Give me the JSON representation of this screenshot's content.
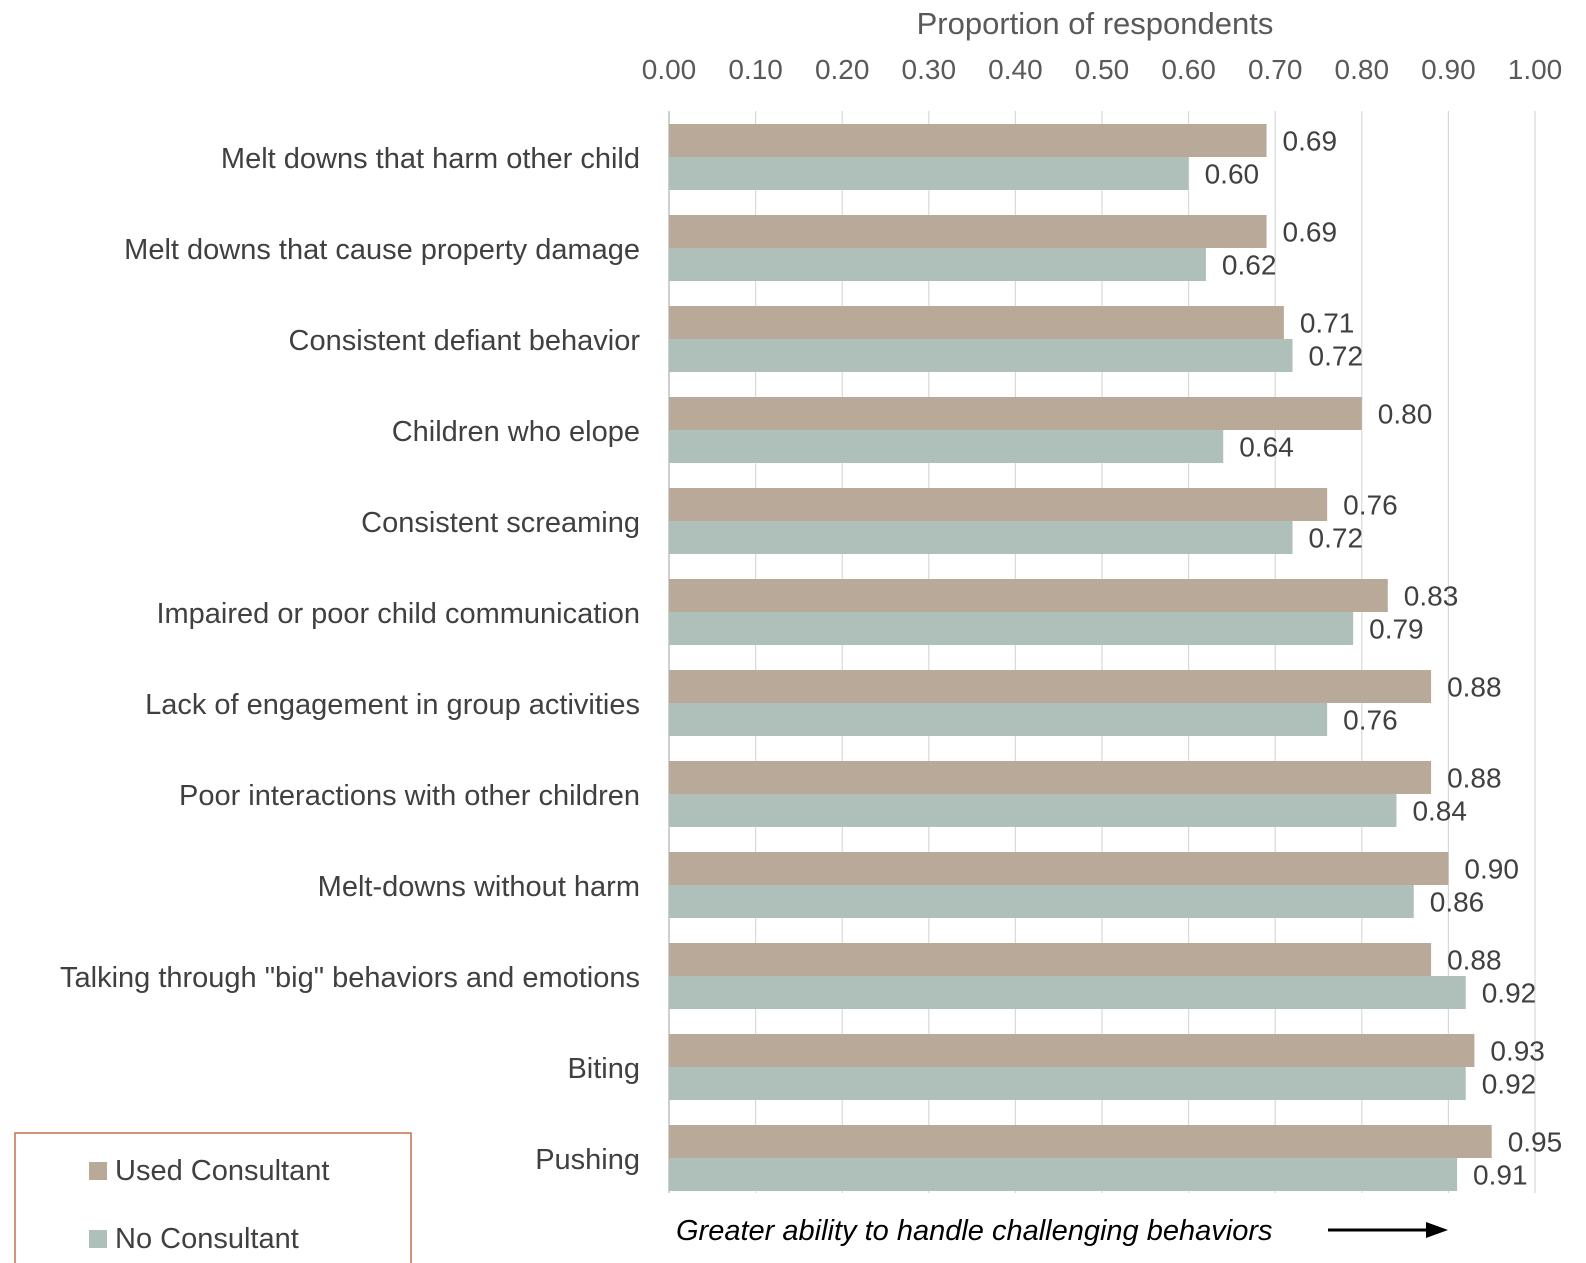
{
  "chart_data": {
    "type": "bar",
    "orientation": "horizontal",
    "x_axis_title": "Proportion of respondents",
    "xlim": [
      0,
      1
    ],
    "x_ticks": [
      "0.00",
      "0.10",
      "0.20",
      "0.30",
      "0.40",
      "0.50",
      "0.60",
      "0.70",
      "0.80",
      "0.90",
      "1.00"
    ],
    "grid": true,
    "categories": [
      "Melt downs that harm other child",
      "Melt downs that cause property damage",
      "Consistent defiant behavior",
      "Children who elope",
      "Consistent screaming",
      "Impaired or poor child communication",
      "Lack of engagement in group activities",
      "Poor interactions with other children",
      "Melt-downs without harm",
      "Talking through \"big\" behaviors and emotions",
      "Biting",
      "Pushing"
    ],
    "series": [
      {
        "name": "Used Consultant",
        "color": "#b9a999",
        "values": [
          0.69,
          0.69,
          0.71,
          0.8,
          0.76,
          0.83,
          0.88,
          0.88,
          0.9,
          0.88,
          0.93,
          0.95
        ]
      },
      {
        "name": "No Consultant",
        "color": "#afc0bb",
        "values": [
          0.6,
          0.62,
          0.72,
          0.64,
          0.72,
          0.79,
          0.76,
          0.84,
          0.86,
          0.92,
          0.92,
          0.91
        ]
      }
    ],
    "legend_position": "bottom-left",
    "legend_border_color": "#c0704f",
    "annotation": "Greater ability to handle challenging behaviors"
  }
}
